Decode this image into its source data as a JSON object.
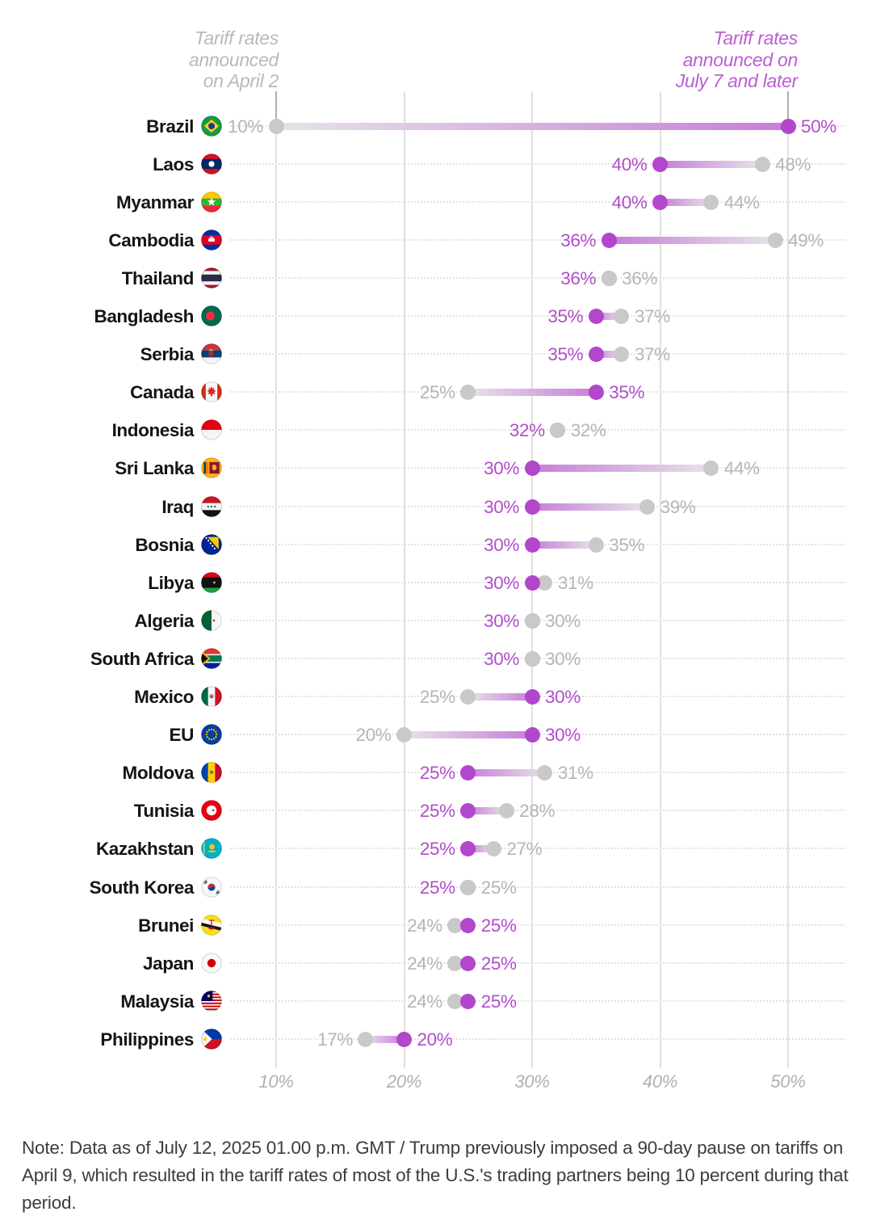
{
  "header": {
    "left_label": "Tariff rates\nannounced\non April 2",
    "right_label": "Tariff rates\nannounced on\nJuly 7 and later"
  },
  "colors": {
    "april_dot": "#c9c9c9",
    "april_text": "#b5b5b5",
    "july_dot": "#b246cc",
    "july_text": "#b14ecb",
    "bar_april_end": "#e6e3e7",
    "bar_july_end": "#c77ed9",
    "gridline": "#e0e0e0",
    "country_text": "#141414",
    "note_text": "#3c3c3c"
  },
  "chart_data": {
    "type": "dumbbell",
    "unit": "%",
    "x_axis": {
      "ticks": [
        10,
        20,
        30,
        40,
        50
      ],
      "tick_labels": [
        "10%",
        "20%",
        "30%",
        "40%",
        "50%"
      ],
      "range": [
        10,
        50
      ],
      "grid": true
    },
    "series": [
      {
        "name": "Tariff rates announced on April 2",
        "color": "#c9c9c9"
      },
      {
        "name": "Tariff rates announced on July 7 and later",
        "color": "#b246cc"
      }
    ],
    "rows": [
      {
        "country": "Brazil",
        "flag": "brazil",
        "april": 10,
        "july": 50,
        "april_label": "10%",
        "july_label": "50%"
      },
      {
        "country": "Laos",
        "flag": "laos",
        "april": 48,
        "july": 40,
        "april_label": "48%",
        "july_label": "40%"
      },
      {
        "country": "Myanmar",
        "flag": "myanmar",
        "april": 44,
        "july": 40,
        "april_label": "44%",
        "july_label": "40%"
      },
      {
        "country": "Cambodia",
        "flag": "cambodia",
        "april": 49,
        "july": 36,
        "april_label": "49%",
        "july_label": "36%"
      },
      {
        "country": "Thailand",
        "flag": "thailand",
        "april": 36,
        "july": 36,
        "april_label": "36%",
        "july_label": "36%"
      },
      {
        "country": "Bangladesh",
        "flag": "bangladesh",
        "april": 37,
        "july": 35,
        "april_label": "37%",
        "july_label": "35%"
      },
      {
        "country": "Serbia",
        "flag": "serbia",
        "april": 37,
        "july": 35,
        "april_label": "37%",
        "july_label": "35%"
      },
      {
        "country": "Canada",
        "flag": "canada",
        "april": 25,
        "july": 35,
        "april_label": "25%",
        "july_label": "35%"
      },
      {
        "country": "Indonesia",
        "flag": "indonesia",
        "april": 32,
        "july": 32,
        "april_label": "32%",
        "july_label": "32%"
      },
      {
        "country": "Sri Lanka",
        "flag": "sri_lanka",
        "april": 44,
        "july": 30,
        "april_label": "44%",
        "july_label": "30%"
      },
      {
        "country": "Iraq",
        "flag": "iraq",
        "april": 39,
        "july": 30,
        "april_label": "39%",
        "july_label": "30%"
      },
      {
        "country": "Bosnia",
        "flag": "bosnia",
        "april": 35,
        "july": 30,
        "april_label": "35%",
        "july_label": "30%"
      },
      {
        "country": "Libya",
        "flag": "libya",
        "april": 31,
        "july": 30,
        "april_label": "31%",
        "july_label": "30%"
      },
      {
        "country": "Algeria",
        "flag": "algeria",
        "april": 30,
        "july": 30,
        "april_label": "30%",
        "july_label": "30%"
      },
      {
        "country": "South Africa",
        "flag": "south_africa",
        "april": 30,
        "july": 30,
        "april_label": "30%",
        "july_label": "30%"
      },
      {
        "country": "Mexico",
        "flag": "mexico",
        "april": 25,
        "july": 30,
        "april_label": "25%",
        "july_label": "30%"
      },
      {
        "country": "EU",
        "flag": "eu",
        "april": 20,
        "july": 30,
        "april_label": "20%",
        "july_label": "30%"
      },
      {
        "country": "Moldova",
        "flag": "moldova",
        "april": 31,
        "july": 25,
        "april_label": "31%",
        "july_label": "25%"
      },
      {
        "country": "Tunisia",
        "flag": "tunisia",
        "april": 28,
        "july": 25,
        "april_label": "28%",
        "july_label": "25%"
      },
      {
        "country": "Kazakhstan",
        "flag": "kazakhstan",
        "april": 27,
        "july": 25,
        "april_label": "27%",
        "july_label": "25%"
      },
      {
        "country": "South Korea",
        "flag": "south_korea",
        "april": 25,
        "july": 25,
        "april_label": "25%",
        "july_label": "25%"
      },
      {
        "country": "Brunei",
        "flag": "brunei",
        "april": 24,
        "july": 25,
        "april_label": "24%",
        "july_label": "25%"
      },
      {
        "country": "Japan",
        "flag": "japan",
        "april": 24,
        "july": 25,
        "april_label": "24%",
        "july_label": "25%"
      },
      {
        "country": "Malaysia",
        "flag": "malaysia",
        "april": 24,
        "july": 25,
        "april_label": "24%",
        "july_label": "25%"
      },
      {
        "country": "Philippines",
        "flag": "philippines",
        "april": 17,
        "july": 20,
        "april_label": "17%",
        "july_label": "20%"
      }
    ]
  },
  "note": "Note: Data as of July 12, 2025 01.00 p.m. GMT / Trump previously imposed a 90-day pause on tariffs on April 9, which resulted in the tariff rates of most of the U.S.'s trading partners being 10 percent during that period."
}
